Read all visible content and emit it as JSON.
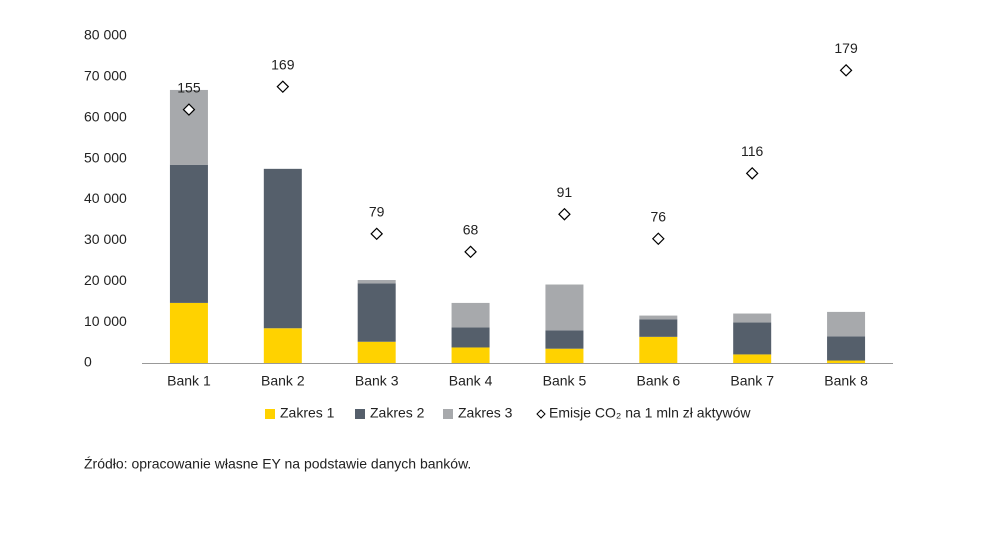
{
  "chart_data": {
    "type": "bar",
    "categories": [
      "Bank 1",
      "Bank 2",
      "Bank 3",
      "Bank 4",
      "Bank 5",
      "Bank 6",
      "Bank 7",
      "Bank 8"
    ],
    "series": [
      {
        "name": "Zakres 1",
        "color": "#ffd200",
        "values": [
          14700,
          8500,
          5200,
          3800,
          3500,
          6400,
          2100,
          600
        ]
      },
      {
        "name": "Zakres 2",
        "color": "#555f6b",
        "values": [
          33800,
          39000,
          14300,
          4900,
          4500,
          4300,
          7800,
          5900
        ]
      },
      {
        "name": "Zakres 3",
        "color": "#a7a9ac",
        "values": [
          18300,
          0,
          800,
          6000,
          11200,
          900,
          2200,
          6000
        ]
      },
      {
        "name": "Emisje CO₂ na 1 mln zł aktywów",
        "color": "#000000",
        "axis": "y2",
        "marker": "diamond",
        "values": [
          155,
          169,
          79,
          68,
          91,
          76,
          116,
          179
        ]
      }
    ],
    "ylim": [
      0,
      80000
    ],
    "yticks": [
      0,
      {
        "value": 10000,
        "label": "10 000"
      },
      {
        "value": 20000,
        "label": "20 000"
      },
      {
        "value": 30000,
        "label": "30 000"
      },
      {
        "value": 40000,
        "label": "40 000"
      },
      {
        "value": 50000,
        "label": "50 000"
      },
      {
        "value": 60000,
        "label": "60 000"
      },
      {
        "value": 70000,
        "label": "70 000"
      },
      {
        "value": 80000,
        "label": "80 000"
      }
    ],
    "y2lim": [
      0,
      200
    ],
    "grid": false,
    "legend": "bottom",
    "source": "Źródło: opracowanie własne EY na podstawie danych banków."
  }
}
